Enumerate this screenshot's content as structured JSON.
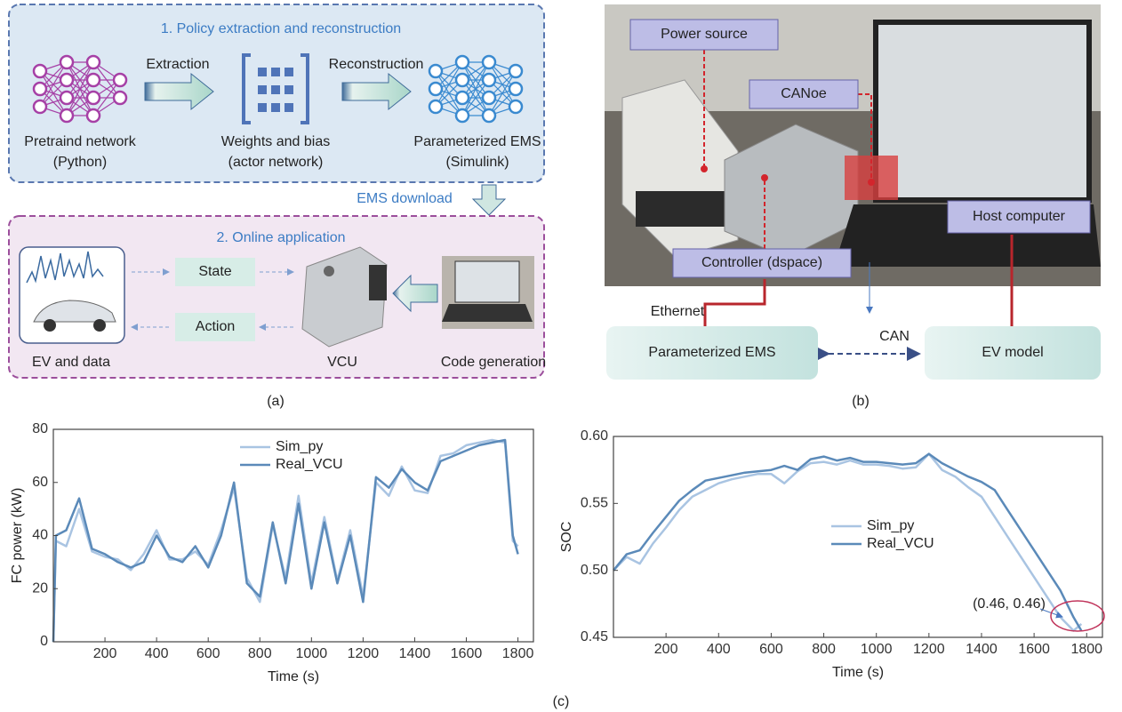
{
  "panel_a": {
    "label": "(a)",
    "section1_title": "1. Policy extraction and reconstruction",
    "extraction": "Extraction",
    "reconstruction": "Reconstruction",
    "pretrained": [
      "Pretraind network",
      "(Python)"
    ],
    "weights": [
      "Weights and bias",
      "(actor network)"
    ],
    "param_ems": [
      "Parameterized EMS",
      "(Simulink)"
    ],
    "ems_download": "EMS download",
    "section2_title": "2. Online application",
    "state": "State",
    "action": "Action",
    "ev_data": "EV and data",
    "vcu": "VCU",
    "code_gen": "Code generation"
  },
  "panel_b": {
    "label": "(b)",
    "power_source": "Power source",
    "canoe": "CANoe",
    "host_computer": "Host computer",
    "controller": "Controller (dspace)",
    "ethernet": "Ethernet",
    "can": "CAN",
    "param_ems": "Parameterized EMS",
    "ev_model": "EV model"
  },
  "panel_c_label": "(c)",
  "chart_data": [
    {
      "type": "line",
      "xlabel": "Time (s)",
      "ylabel": "FC power (kW)",
      "xlim": [
        0,
        1860
      ],
      "ylim": [
        0,
        80
      ],
      "xticks": [
        200,
        400,
        600,
        800,
        1000,
        1200,
        1400,
        1600,
        1800
      ],
      "yticks": [
        0,
        20,
        40,
        60,
        80
      ],
      "legend": "upper center",
      "x": [
        0,
        10,
        50,
        100,
        150,
        200,
        250,
        300,
        350,
        400,
        450,
        500,
        550,
        600,
        650,
        700,
        750,
        800,
        850,
        900,
        950,
        1000,
        1050,
        1100,
        1150,
        1200,
        1250,
        1300,
        1350,
        1400,
        1450,
        1500,
        1550,
        1600,
        1650,
        1700,
        1750,
        1780,
        1800
      ],
      "series": [
        {
          "name": "Sim_py",
          "color": "#a9c4e2",
          "values": [
            0,
            38,
            36,
            50,
            34,
            32,
            31,
            27,
            33,
            42,
            31,
            31,
            34,
            29,
            42,
            58,
            24,
            15,
            44,
            24,
            55,
            22,
            47,
            23,
            42,
            17,
            60,
            55,
            66,
            57,
            56,
            70,
            71,
            74,
            75,
            76,
            75,
            38,
            36
          ]
        },
        {
          "name": "Real_VCU",
          "color": "#5b8ab9",
          "values": [
            0,
            40,
            42,
            54,
            35,
            33,
            30,
            28,
            30,
            40,
            32,
            30,
            36,
            28,
            40,
            60,
            22,
            17,
            45,
            22,
            52,
            20,
            45,
            22,
            40,
            15,
            62,
            58,
            65,
            60,
            57,
            68,
            70,
            72,
            74,
            75,
            76,
            40,
            33
          ]
        }
      ]
    },
    {
      "type": "line",
      "xlabel": "Time (s)",
      "ylabel": "SOC",
      "xlim": [
        0,
        1860
      ],
      "ylim": [
        0.45,
        0.6
      ],
      "xticks": [
        200,
        400,
        600,
        800,
        1000,
        1200,
        1400,
        1600,
        1800
      ],
      "yticks": [
        0.45,
        {
          "value": 0.5,
          "label": "0.50"
        },
        0.55,
        {
          "value": 0.6,
          "label": "0.60"
        }
      ],
      "legend": "center",
      "annotation": "(0.46, 0.46)",
      "x": [
        0,
        50,
        100,
        150,
        200,
        250,
        300,
        350,
        400,
        450,
        500,
        550,
        600,
        650,
        700,
        750,
        800,
        850,
        900,
        950,
        1000,
        1050,
        1100,
        1150,
        1200,
        1250,
        1300,
        1350,
        1400,
        1450,
        1500,
        1550,
        1600,
        1650,
        1700,
        1750,
        1780
      ],
      "series": [
        {
          "name": "Sim_py",
          "color": "#a9c4e2",
          "values": [
            0.5,
            0.51,
            0.505,
            0.52,
            0.532,
            0.545,
            0.555,
            0.56,
            0.565,
            0.568,
            0.57,
            0.572,
            0.572,
            0.565,
            0.574,
            0.58,
            0.581,
            0.579,
            0.582,
            0.579,
            0.579,
            0.578,
            0.576,
            0.577,
            0.587,
            0.575,
            0.57,
            0.562,
            0.555,
            0.54,
            0.525,
            0.51,
            0.495,
            0.48,
            0.465,
            0.455,
            0.46
          ]
        },
        {
          "name": "Real_VCU",
          "color": "#5b8ab9",
          "values": [
            0.5,
            0.512,
            0.515,
            0.528,
            0.54,
            0.552,
            0.56,
            0.567,
            0.569,
            0.571,
            0.573,
            0.574,
            0.575,
            0.578,
            0.575,
            0.583,
            0.585,
            0.582,
            0.584,
            0.581,
            0.581,
            0.58,
            0.579,
            0.58,
            0.587,
            0.58,
            0.575,
            0.57,
            0.566,
            0.56,
            0.545,
            0.53,
            0.515,
            0.5,
            0.485,
            0.465,
            0.455
          ]
        }
      ]
    }
  ]
}
